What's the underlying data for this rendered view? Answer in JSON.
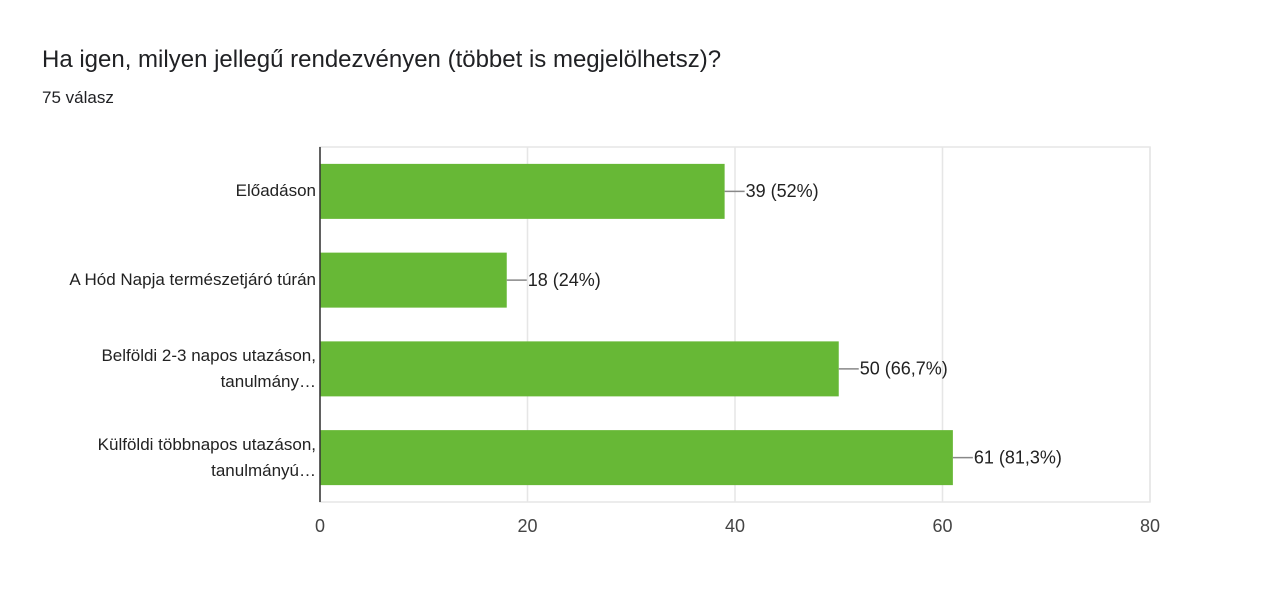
{
  "chart_data": {
    "type": "bar",
    "orientation": "horizontal",
    "title": "Ha igen, milyen jellegű rendezvényen (többet is megjelölhetsz)?",
    "subtitle": "75 válasz",
    "categories": [
      "Előadáson",
      "A Hód Napja természetjáró túrán",
      "Belföldi 2-3 napos utazáson,\ntanulmány…",
      "Külföldi többnapos utazáson,\ntanulmányú…"
    ],
    "values": [
      39,
      18,
      50,
      61
    ],
    "value_labels": [
      "39 (52%)",
      "18 (24%)",
      "50 (66,7%)",
      "61 (81,3%)"
    ],
    "color": "#67b836",
    "xlim": [
      0,
      80
    ],
    "xticks": [
      0,
      20,
      40,
      60,
      80
    ],
    "grid": true
  }
}
